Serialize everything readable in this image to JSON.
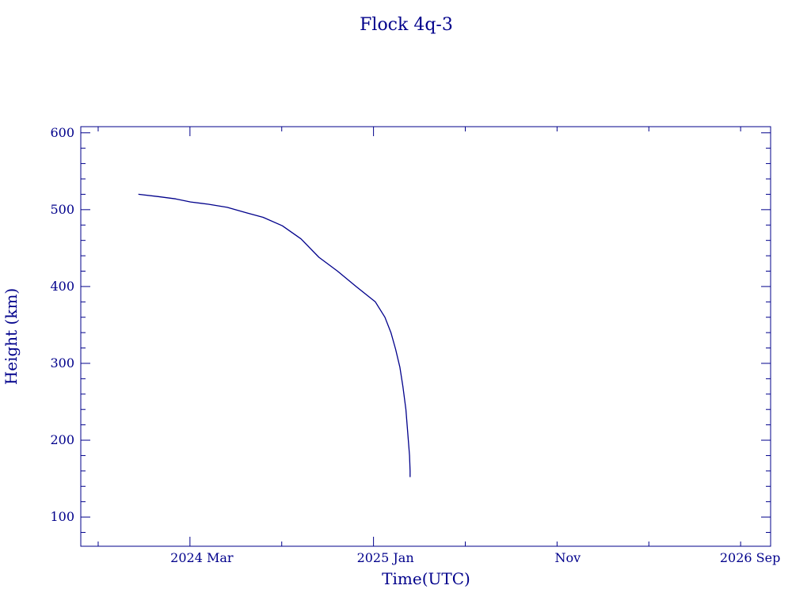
{
  "colors": {
    "ink": "#00008b",
    "background": "#ffffff"
  },
  "chart_data": {
    "type": "line",
    "title": "Flock 4q-3",
    "xlabel": "Time(UTC)",
    "ylabel": "Height (km)",
    "x_unit": "date",
    "xlim": [
      "2023-09-01",
      "2026-10-25"
    ],
    "ylim": [
      62,
      608
    ],
    "grid": false,
    "legend": "none",
    "x_ticks": [
      {
        "date": "2024-03-01",
        "label": "2024 Mar"
      },
      {
        "date": "2025-01-01",
        "label": "2025 Jan"
      },
      {
        "date": "2025-11-01",
        "label": "Nov"
      },
      {
        "date": "2026-09-01",
        "label": "2026 Sep"
      }
    ],
    "y_ticks": [
      {
        "value": 100,
        "label": "100"
      },
      {
        "value": 200,
        "label": "200"
      },
      {
        "value": 300,
        "label": "300"
      },
      {
        "value": 400,
        "label": "400"
      },
      {
        "value": 500,
        "label": "500"
      },
      {
        "value": 600,
        "label": "600"
      }
    ],
    "series": [
      {
        "color": "#00008b",
        "x": [
          "2023-12-06",
          "2024-01-08",
          "2024-02-06",
          "2024-03-02",
          "2024-04-01",
          "2024-05-02",
          "2024-06-03",
          "2024-07-01",
          "2024-08-02",
          "2024-09-02",
          "2024-10-02",
          "2024-11-02",
          "2024-12-03",
          "2025-01-04",
          "2025-01-20",
          "2025-01-30",
          "2025-02-07",
          "2025-02-14",
          "2025-02-19",
          "2025-02-24",
          "2025-02-27",
          "2025-03-02",
          "2025-03-03",
          "2025-03-03"
        ],
        "y": [
          520,
          517,
          514,
          510,
          507,
          503,
          496,
          490,
          479,
          462,
          438,
          420,
          400,
          380,
          360,
          340,
          318,
          295,
          270,
          240,
          210,
          180,
          160,
          152
        ]
      }
    ]
  }
}
